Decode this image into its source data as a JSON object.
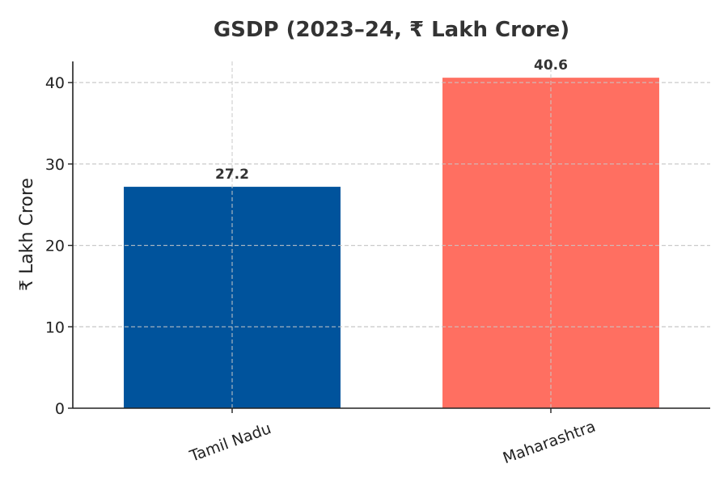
{
  "chart_data": {
    "type": "bar",
    "title": "GSDP (2023–24, ₹ Lakh Crore)",
    "xlabel": "",
    "ylabel": "₹ Lakh Crore",
    "categories": [
      "Tamil Nadu",
      "Maharashtra"
    ],
    "values": [
      27.2,
      40.6
    ],
    "value_labels": [
      "27.2",
      "40.6"
    ],
    "colors": [
      "#00539c",
      "#ff6f61"
    ],
    "ylim": [
      0,
      42.6
    ],
    "yticks": [
      0,
      10,
      20,
      30,
      40
    ],
    "grid": true,
    "legend": "none"
  }
}
